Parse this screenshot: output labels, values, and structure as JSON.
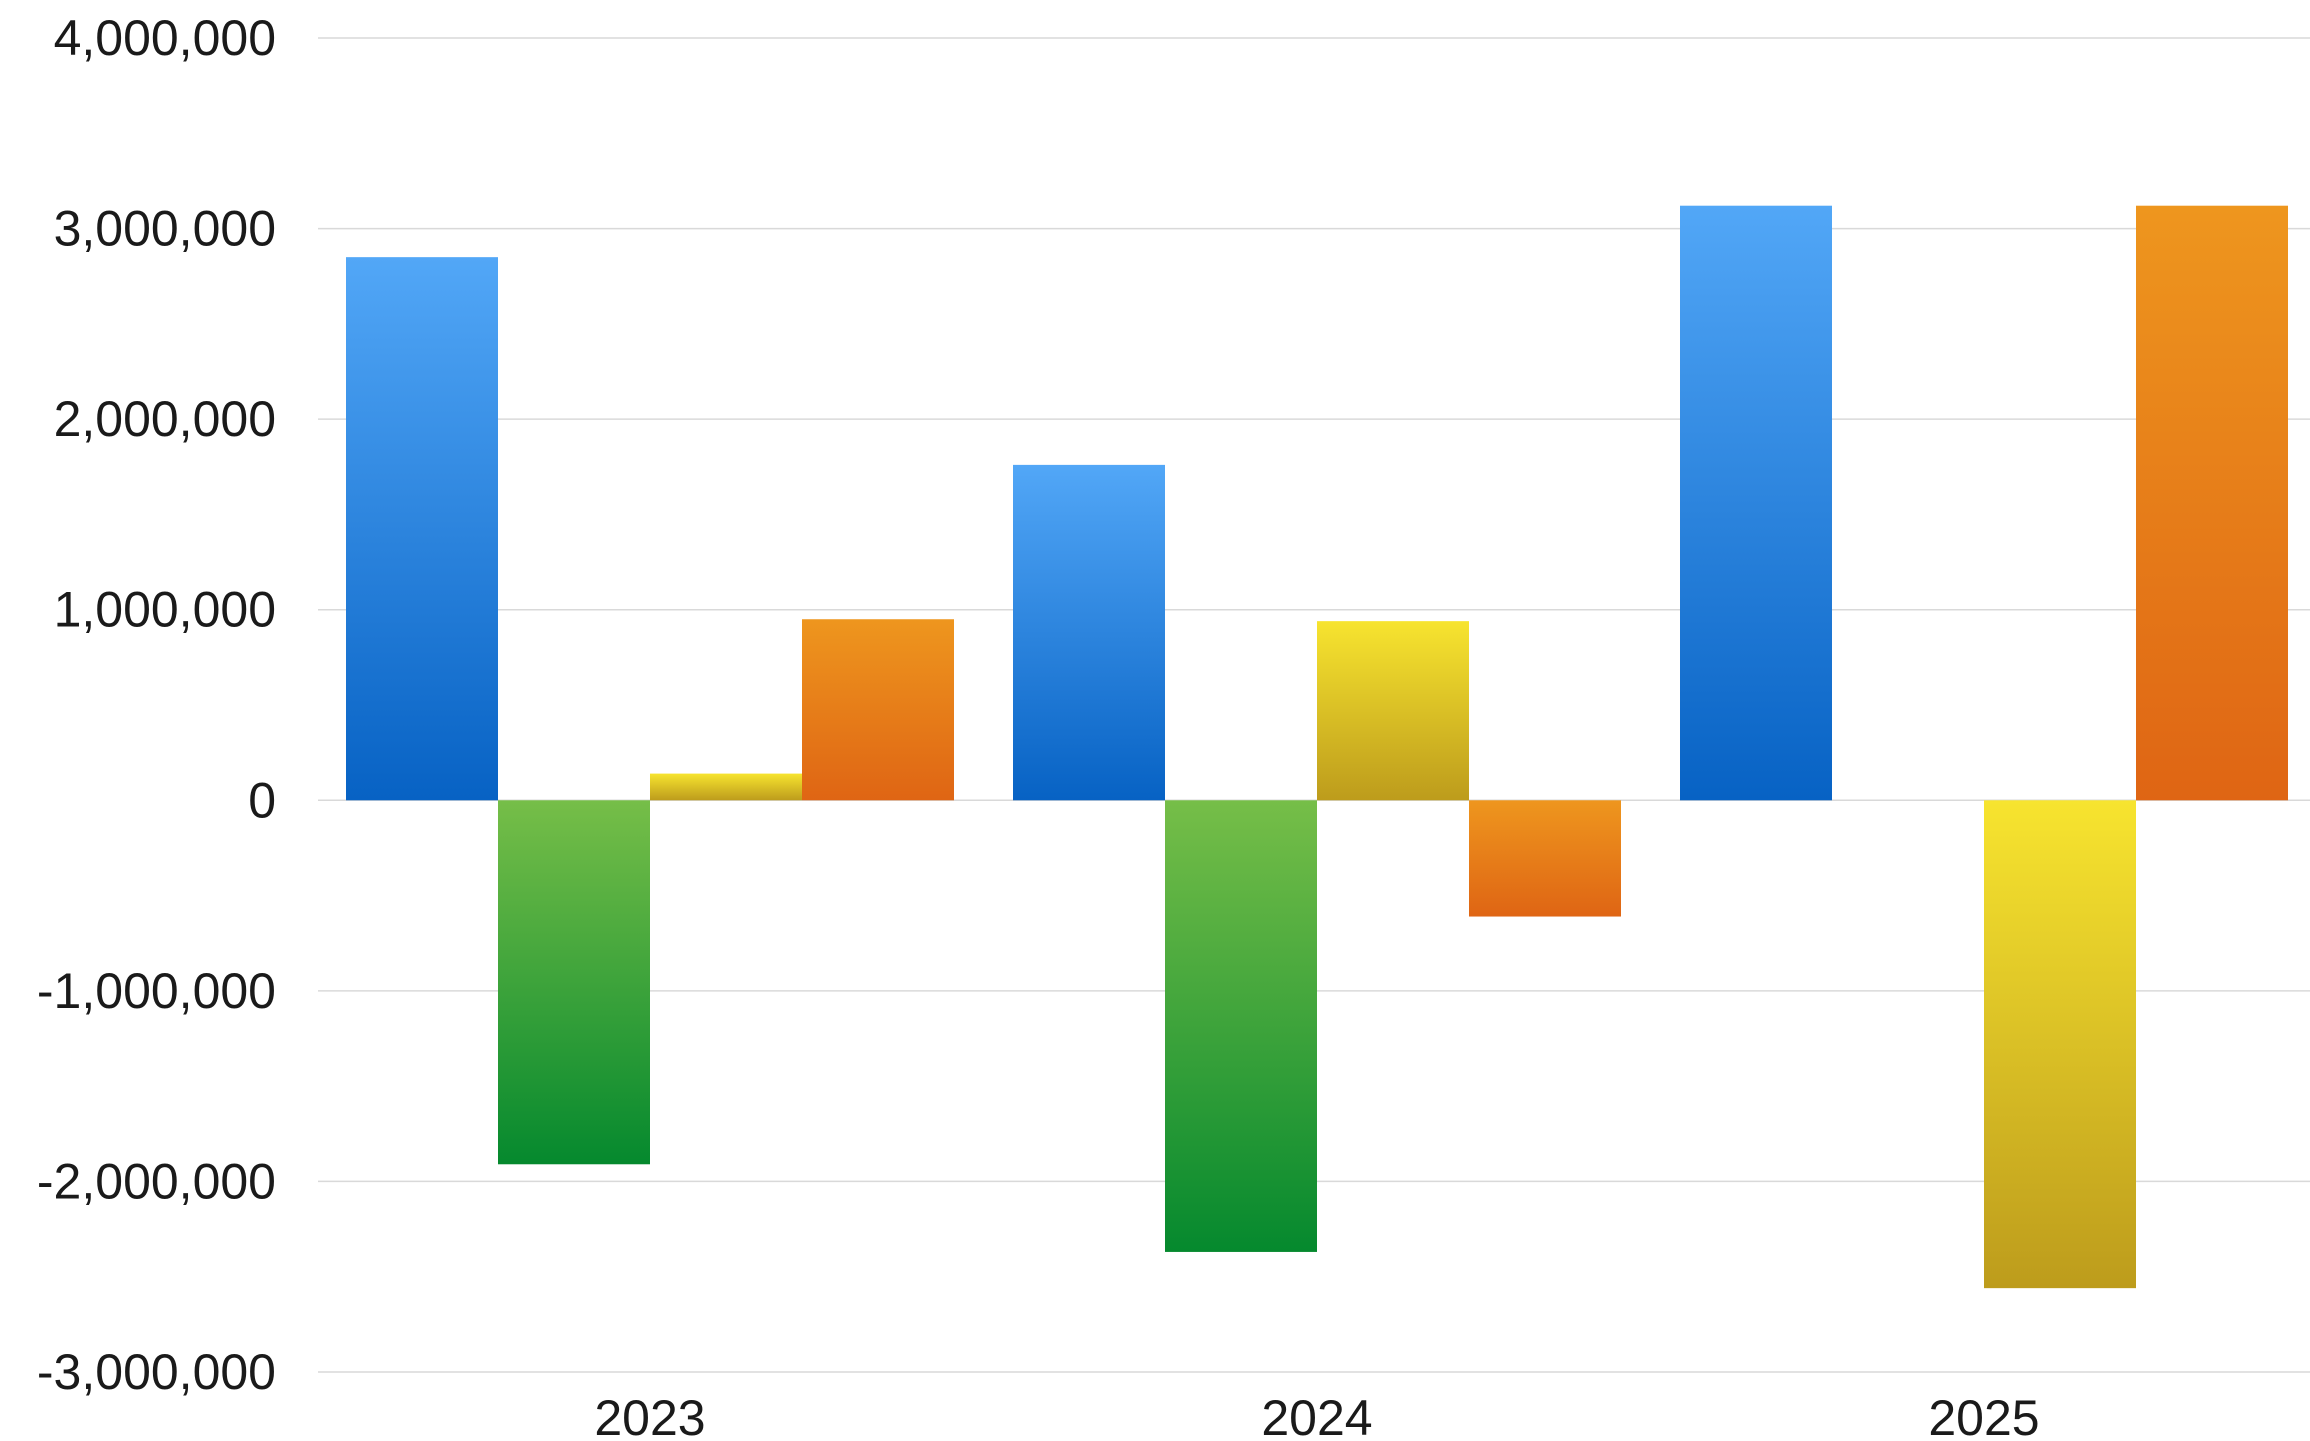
{
  "chart_data": {
    "type": "bar",
    "categories": [
      "2023",
      "2024",
      "2025"
    ],
    "series": [
      {
        "color_top": "#52a7f7",
        "color_bottom": "#0762c4",
        "values": [
          2850000,
          1760000,
          3120000
        ]
      },
      {
        "color_top": "#76be48",
        "color_bottom": "#05892e",
        "values": [
          -1910000,
          -2370000,
          0
        ]
      },
      {
        "color_top": "#f7e42f",
        "color_bottom": "#bd9c1c",
        "values": [
          140000,
          940000,
          -2560000
        ]
      },
      {
        "color_top": "#ee961e",
        "color_bottom": "#df6514",
        "values": [
          950000,
          -610000,
          3120000
        ]
      }
    ],
    "ylim": [
      -3000000,
      4000000
    ],
    "yticks": [
      {
        "value": 4000000,
        "label": "4,000,000"
      },
      {
        "value": 3000000,
        "label": "3,000,000"
      },
      {
        "value": 2000000,
        "label": "2,000,000"
      },
      {
        "value": 1000000,
        "label": "1,000,000"
      },
      {
        "value": 0,
        "label": "0"
      },
      {
        "value": -1000000,
        "label": "-1,000,000"
      },
      {
        "value": -2000000,
        "label": "-2,000,000"
      },
      {
        "value": -3000000,
        "label": "-3,000,000"
      }
    ],
    "grid": true,
    "legend": "none",
    "xlabel": "",
    "ylabel": "",
    "title": ""
  }
}
